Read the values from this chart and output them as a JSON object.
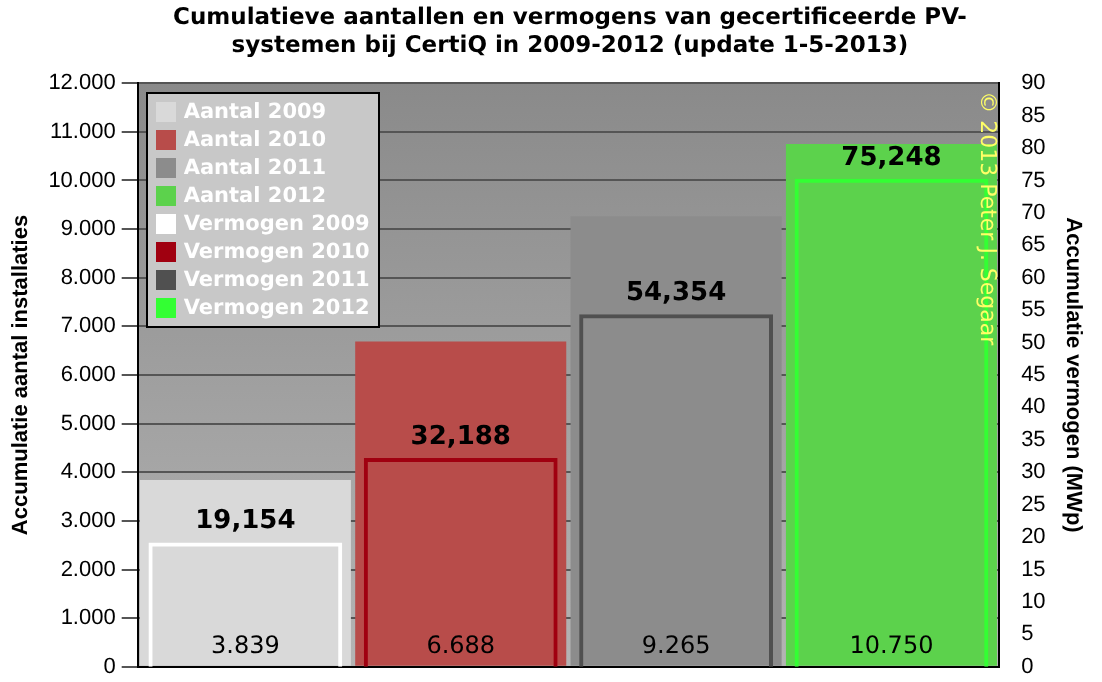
{
  "chart_data": {
    "type": "bar",
    "title": "Cumulatieve aantallen en vermogens van gecertificeerde PV-systemen bij CertiQ in 2009-2012 (update 1-5-2013)",
    "ylabel": "Accumulatie aantal installaties",
    "y2label": "Accumulatie vermogen (MWp)",
    "categories": [
      null,
      null,
      null,
      null
    ],
    "series": [
      {
        "name": "Aantal 2009",
        "color": "#d9d9d9",
        "values": [
          3839,
          null,
          null,
          null
        ],
        "value_labels": [
          "3.839",
          null,
          null,
          null
        ]
      },
      {
        "name": "Aantal 2010",
        "color": "#b84c4a",
        "values": [
          null,
          6688,
          null,
          null
        ],
        "value_labels": [
          null,
          "6.688",
          null,
          null
        ]
      },
      {
        "name": "Aantal 2011",
        "color": "#8c8c8c",
        "values": [
          null,
          null,
          9265,
          null
        ],
        "value_labels": [
          null,
          null,
          "9.265",
          null
        ]
      },
      {
        "name": "Aantal 2012",
        "color": "#5cd24c",
        "values": [
          null,
          null,
          null,
          10750
        ],
        "value_labels": [
          null,
          null,
          null,
          "10.750"
        ]
      },
      {
        "name": "Vermogen 2009",
        "color": "#ffffff",
        "axis": "y2",
        "values": [
          19.154,
          null,
          null,
          null
        ],
        "value_labels": [
          "19,154",
          null,
          null,
          null
        ]
      },
      {
        "name": "Vermogen 2010",
        "color": "#a00010",
        "axis": "y2",
        "values": [
          null,
          32.188,
          null,
          null
        ],
        "value_labels": [
          null,
          "32,188",
          null,
          null
        ]
      },
      {
        "name": "Vermogen 2011",
        "color": "#505050",
        "axis": "y2",
        "values": [
          null,
          null,
          54.354,
          null
        ],
        "value_labels": [
          null,
          null,
          "54,354",
          null
        ]
      },
      {
        "name": "Vermogen 2012",
        "color": "#33ff33",
        "axis": "y2",
        "values": [
          null,
          null,
          null,
          75.248
        ],
        "value_labels": [
          null,
          null,
          null,
          "75,248"
        ]
      }
    ],
    "ylim": [
      0,
      12000
    ],
    "yticks": [
      {
        "value": 0,
        "label": "0"
      },
      {
        "value": 1000,
        "label": "1.000"
      },
      {
        "value": 2000,
        "label": "2.000"
      },
      {
        "value": 3000,
        "label": "3.000"
      },
      {
        "value": 4000,
        "label": "4.000"
      },
      {
        "value": 5000,
        "label": "5.000"
      },
      {
        "value": 6000,
        "label": "6.000"
      },
      {
        "value": 7000,
        "label": "7.000"
      },
      {
        "value": 8000,
        "label": "8.000"
      },
      {
        "value": 9000,
        "label": "9.000"
      },
      {
        "value": 10000,
        "label": "10.000"
      },
      {
        "value": 11000,
        "label": "11.000"
      },
      {
        "value": 12000,
        "label": "12.000"
      }
    ],
    "y2lim": [
      0,
      90
    ],
    "y2ticks": [
      0,
      5,
      10,
      15,
      20,
      25,
      30,
      35,
      40,
      45,
      50,
      55,
      60,
      65,
      70,
      75,
      80,
      85,
      90
    ],
    "grid": "y",
    "legend": "top left",
    "annotations": [
      "© 2013 Peter J. Segaar"
    ]
  }
}
